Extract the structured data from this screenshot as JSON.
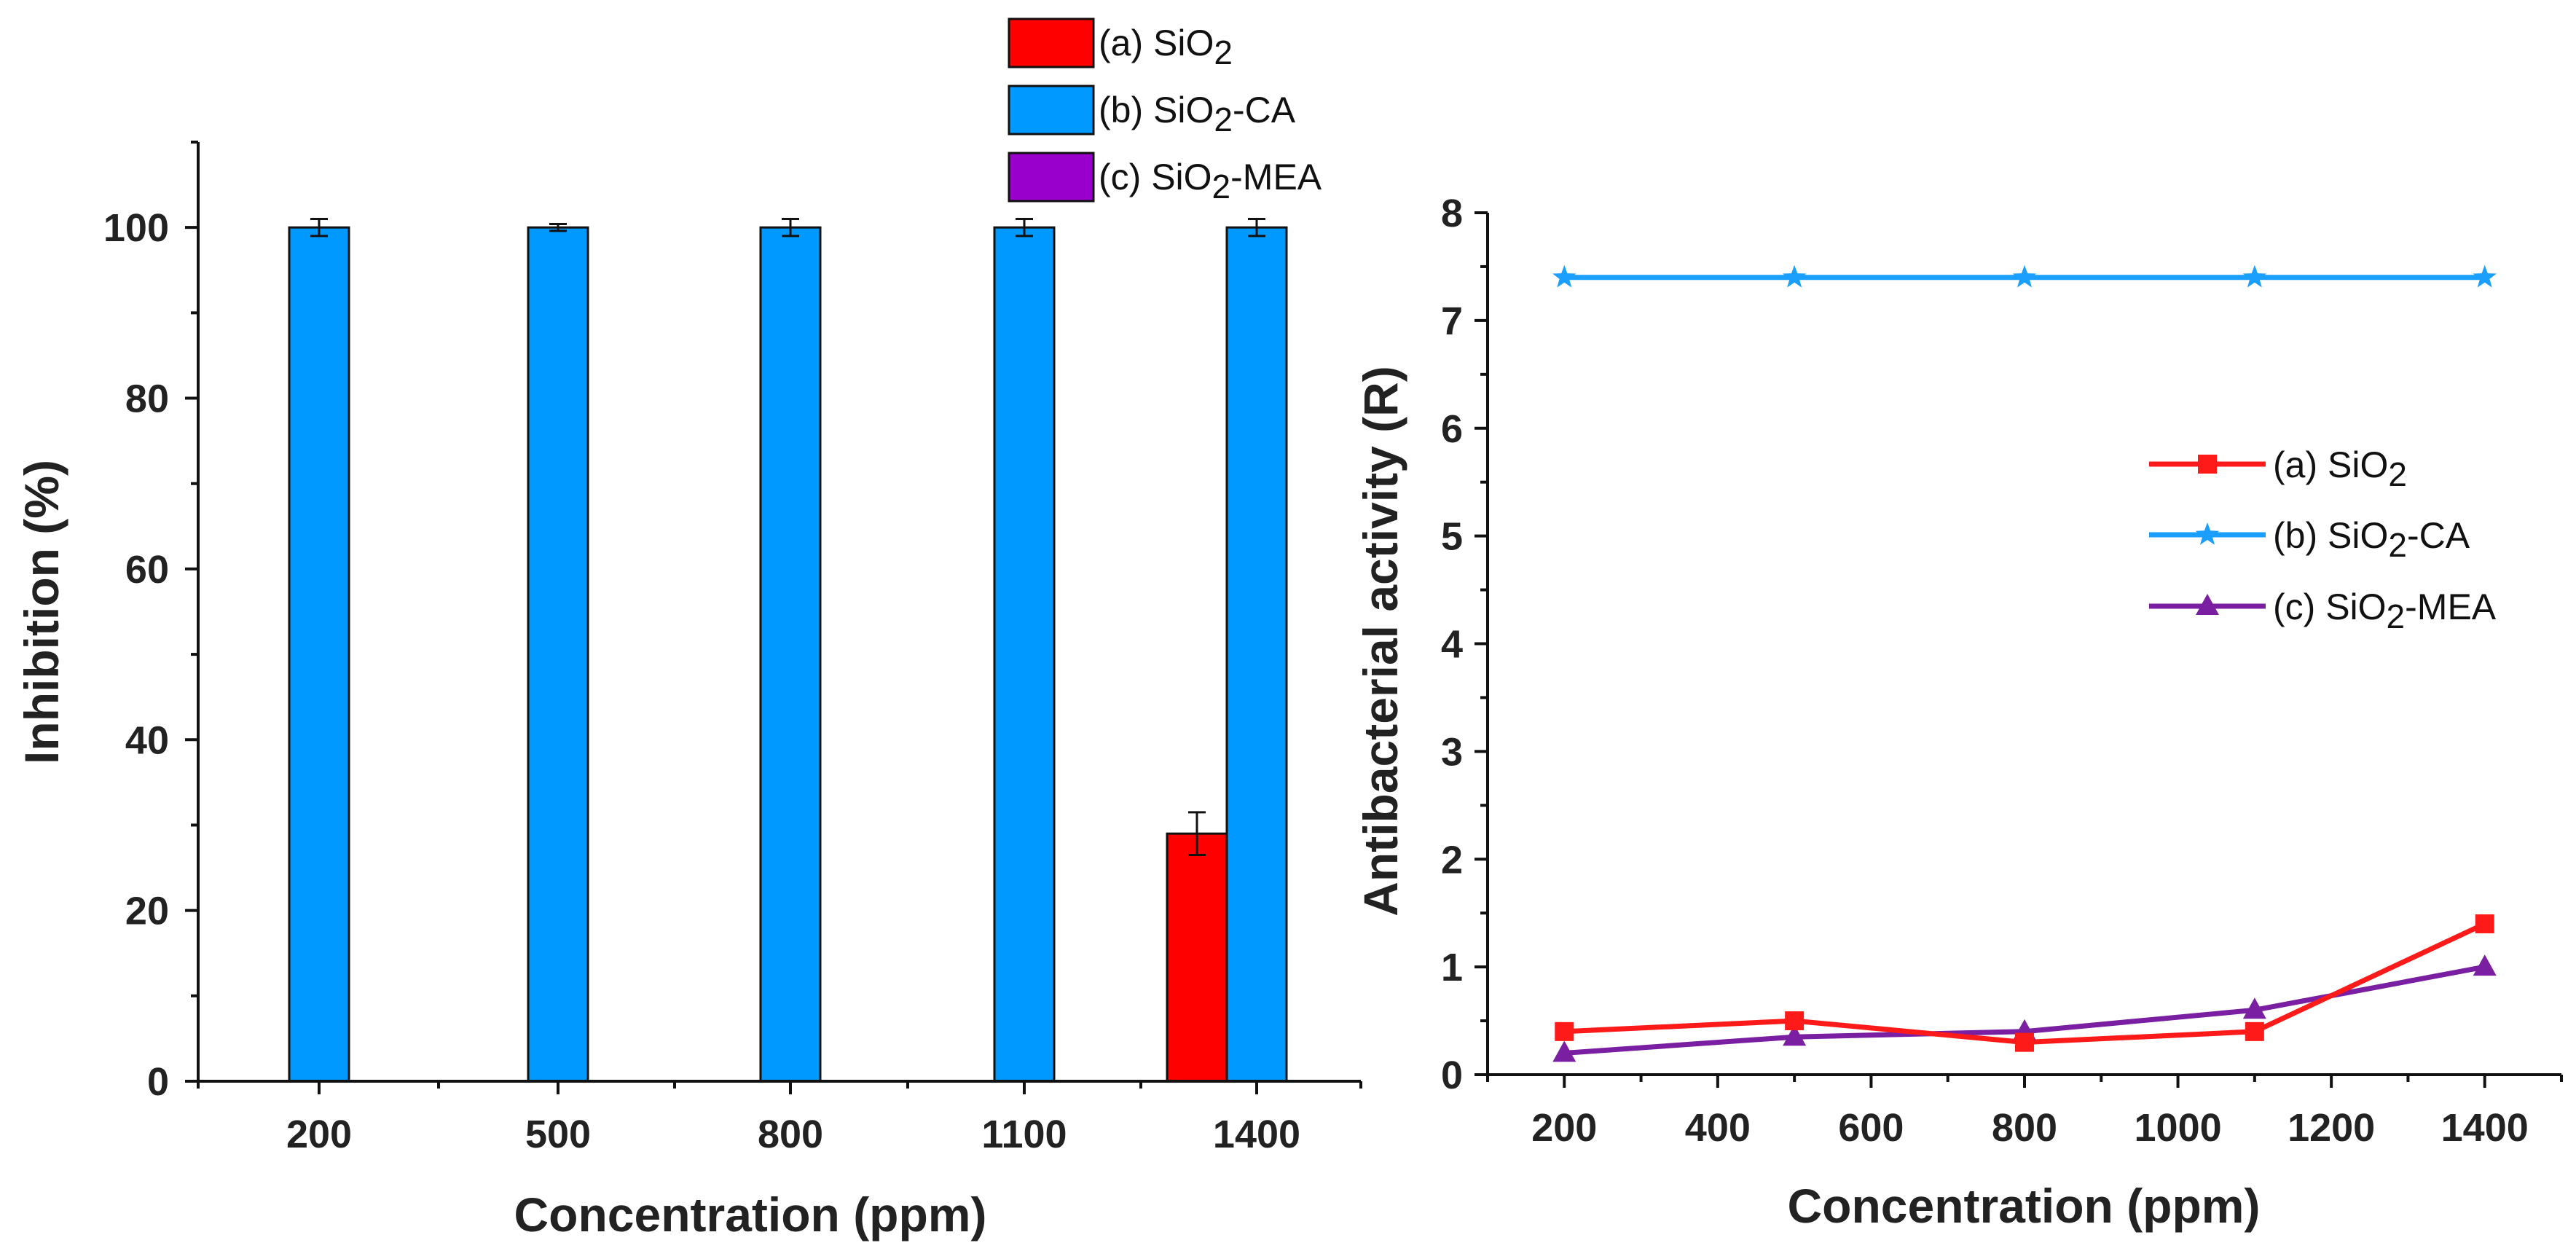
{
  "chart_data": [
    {
      "type": "bar",
      "categories": [
        "200",
        "500",
        "800",
        "1100",
        "1400"
      ],
      "series": [
        {
          "name": "(a) SiO2",
          "label_base": "(a) SiO",
          "label_sub": "2",
          "label_suffix": "",
          "color": "#ff0000",
          "values": [
            0,
            0,
            0,
            0,
            29
          ],
          "errors": [
            0,
            0,
            0,
            0,
            2.5
          ]
        },
        {
          "name": "(b) SiO2-CA",
          "label_base": "(b) SiO",
          "label_sub": "2",
          "label_suffix": "-CA",
          "color": "#0099ff",
          "values": [
            100,
            100,
            100,
            100,
            100
          ],
          "errors": [
            1.0,
            0.4,
            1.0,
            1.0,
            1.0
          ]
        },
        {
          "name": "(c) SiO2-MEA",
          "label_base": "(c) SiO",
          "label_sub": "2",
          "label_suffix": "-MEA",
          "color": "#9900cc",
          "values": [
            0,
            0,
            0,
            0,
            0
          ],
          "errors": [
            0,
            0,
            0,
            0,
            0
          ]
        }
      ],
      "xlabel": "Concentration (ppm)",
      "ylabel": "Inhibition (%)",
      "ylim": [
        0,
        110
      ],
      "yticks": [
        0,
        20,
        40,
        60,
        80,
        100
      ],
      "legend_position": "top-center"
    },
    {
      "type": "line",
      "x": [
        200,
        500,
        800,
        1100,
        1400
      ],
      "series": [
        {
          "name": "(a) SiO2",
          "label_base": "(a) SiO",
          "label_sub": "2",
          "label_suffix": "",
          "color": "#ff1a1a",
          "marker": "square",
          "values": [
            0.4,
            0.5,
            0.3,
            0.4,
            1.4
          ]
        },
        {
          "name": "(b) SiO2-CA",
          "label_base": "(b) SiO",
          "label_sub": "2",
          "label_suffix": "-CA",
          "color": "#1a9fff",
          "marker": "star",
          "values": [
            7.4,
            7.4,
            7.4,
            7.4,
            7.4
          ]
        },
        {
          "name": "(c) SiO2-MEA",
          "label_base": "(c) SiO",
          "label_sub": "2",
          "label_suffix": "-MEA",
          "color": "#7a1fa2",
          "marker": "triangle",
          "values": [
            0.2,
            0.35,
            0.4,
            0.6,
            1.0
          ]
        }
      ],
      "xlabel": "Concentration (ppm)",
      "ylabel": "Antibacterial activity (R)",
      "xlim": [
        100,
        1500
      ],
      "xticks": [
        200,
        400,
        600,
        800,
        1000,
        1200,
        1400
      ],
      "ylim": [
        0,
        8
      ],
      "yticks": [
        0,
        1,
        2,
        3,
        4,
        5,
        6,
        7,
        8
      ],
      "legend_position": "center-right"
    }
  ]
}
